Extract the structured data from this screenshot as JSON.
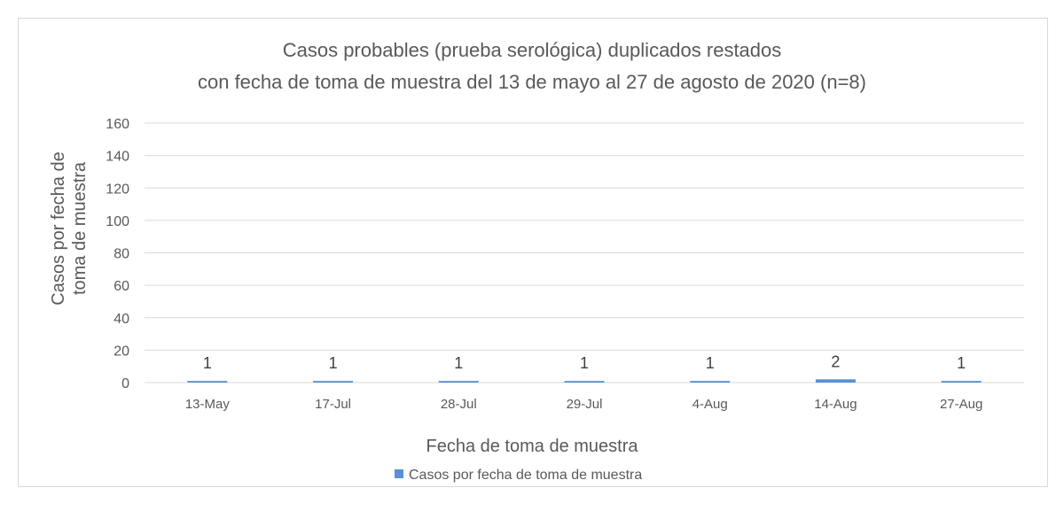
{
  "chart_data": {
    "type": "bar",
    "title_lines": [
      "Casos probables (prueba serológica) duplicados restados",
      "con fecha de toma de muestra del 13 de mayo al 27 de agosto de 2020 (n=8)"
    ],
    "categories": [
      "13-May",
      "17-Jul",
      "28-Jul",
      "29-Jul",
      "4-Aug",
      "14-Aug",
      "27-Aug"
    ],
    "series": [
      {
        "name": "Casos por fecha de toma de muestra",
        "values": [
          1,
          1,
          1,
          1,
          1,
          2,
          1
        ],
        "color": "#5b8fd6"
      }
    ],
    "data_labels": [
      "1",
      "1",
      "1",
      "1",
      "1",
      "2",
      "1"
    ],
    "xlabel": "Fecha de toma de muestra",
    "ylabel_lines": [
      "Casos por fecha de",
      "toma de muestra"
    ],
    "ylim": [
      0,
      160
    ],
    "yticks": [
      0,
      20,
      40,
      60,
      80,
      100,
      120,
      140,
      160
    ],
    "grid": true,
    "legend_position": "bottom",
    "colors": {
      "gridline": "#d9d9d9",
      "text": "#595959"
    }
  }
}
